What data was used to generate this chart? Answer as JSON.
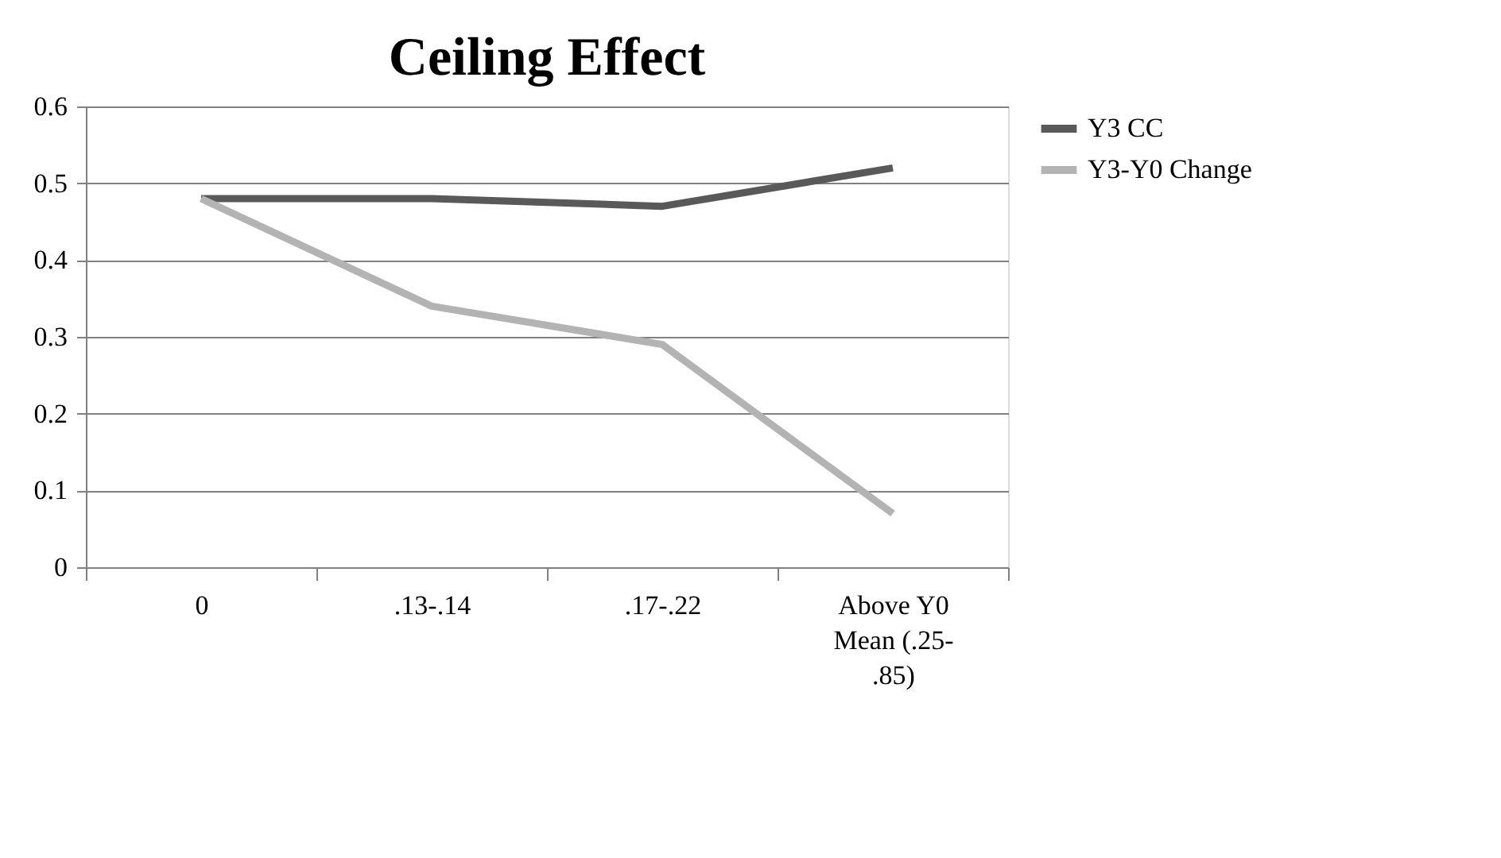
{
  "chart_data": {
    "type": "line",
    "title": "Ceiling Effect",
    "categories": [
      "0",
      ".13-.14",
      ".17-.22",
      "Above Y0 Mean (.25-.85)"
    ],
    "series": [
      {
        "name": "Y3 CC",
        "color": "#595959",
        "values": [
          0.48,
          0.48,
          0.47,
          0.52
        ]
      },
      {
        "name": "Y3-Y0 Change",
        "color": "#b3b3b3",
        "values": [
          0.48,
          0.34,
          0.29,
          0.07
        ]
      }
    ],
    "ylim": [
      0,
      0.6
    ],
    "yticks": [
      0,
      0.1,
      0.2,
      0.3,
      0.4,
      0.5,
      0.6
    ],
    "grid": "y",
    "legend": "right",
    "marker": "none",
    "line_style": "solid"
  }
}
